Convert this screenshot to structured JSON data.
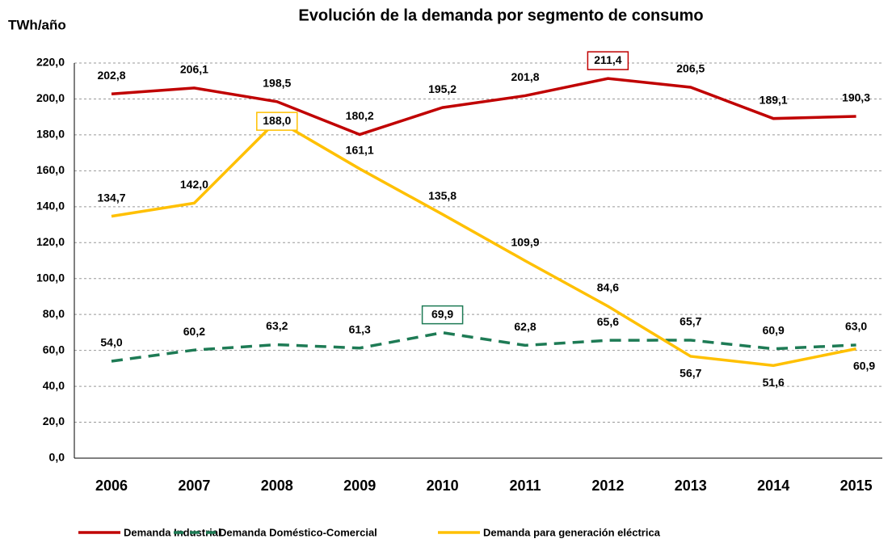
{
  "chart_data": {
    "type": "line",
    "title": "Evolución de la demanda por segmento de consumo",
    "ylabel": "TWh/año",
    "categories": [
      "2006",
      "2007",
      "2008",
      "2009",
      "2010",
      "2011",
      "2012",
      "2013",
      "2014",
      "2015"
    ],
    "ylim": [
      0,
      220
    ],
    "yticks": [
      {
        "value": 0,
        "label": "0,0"
      },
      {
        "value": 20,
        "label": "20,0"
      },
      {
        "value": 40,
        "label": "40,0"
      },
      {
        "value": 60,
        "label": "60,0"
      },
      {
        "value": 80,
        "label": "80,0"
      },
      {
        "value": 100,
        "label": "100,0"
      },
      {
        "value": 120,
        "label": "120,0"
      },
      {
        "value": 140,
        "label": "140,0"
      },
      {
        "value": 160,
        "label": "160,0"
      },
      {
        "value": 180,
        "label": "180,0"
      },
      {
        "value": 200,
        "label": "200,0"
      },
      {
        "value": 220,
        "label": "220,0"
      }
    ],
    "grid": true,
    "legend": "bottom",
    "series": [
      {
        "name": "Demanda Industrial",
        "color": "#c00000",
        "dash": false,
        "values": [
          202.8,
          206.1,
          198.5,
          180.2,
          195.2,
          201.8,
          211.4,
          206.5,
          189.1,
          190.3
        ],
        "value_labels": [
          "202,8",
          "206,1",
          "198,5",
          "180,2",
          "195,2",
          "201,8",
          "211,4",
          "206,5",
          "189,1",
          "190,3"
        ]
      },
      {
        "name": "Demanda Doméstico-Comercial",
        "color": "#1e7b55",
        "dash": true,
        "values": [
          54.0,
          60.2,
          63.2,
          61.3,
          69.9,
          62.8,
          65.6,
          65.7,
          60.9,
          63.0
        ],
        "value_labels": [
          "54,0",
          "60,2",
          "63,2",
          "61,3",
          "69,9",
          "62,8",
          "65,6",
          "65,7",
          "60,9",
          "63,0"
        ]
      },
      {
        "name": "Demanda para generación eléctrica",
        "color": "#ffc000",
        "dash": false,
        "values": [
          134.7,
          142.0,
          188.0,
          161.1,
          135.8,
          109.9,
          84.6,
          56.7,
          51.6,
          60.9
        ],
        "value_labels": [
          "134,7",
          "142,0",
          "188,0",
          "161,1",
          "135,8",
          "109,9",
          "84,6",
          "56,7",
          "51,6",
          "60,9"
        ]
      }
    ]
  }
}
